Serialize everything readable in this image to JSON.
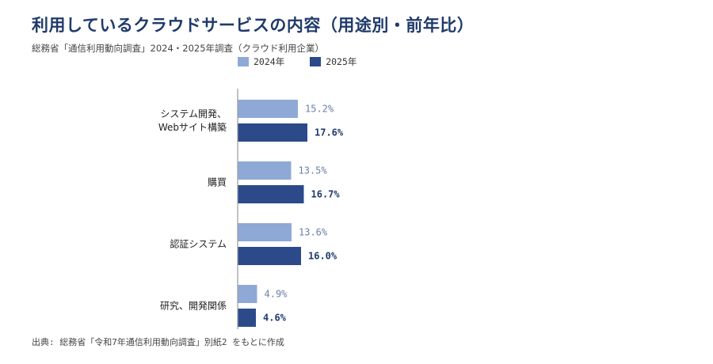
{
  "title": "利用しているクラウドサービスの内容（用途別・前年比）",
  "subtitle": "総務省「通信利用動向調査」2024・2025年調査（クラウド利用企業）",
  "source": "出典: 総務省「令和7年通信利用動向調査」別紙2 をもとに作成",
  "colors": {
    "series_2024": "#8fa9d6",
    "series_2025": "#2c4a8a",
    "axis": "#999999"
  },
  "chart_data": {
    "type": "bar",
    "orientation": "horizontal",
    "categories": [
      [
        "システム開発、",
        "Webサイト構築"
      ],
      [
        "購買"
      ],
      [
        "認証システム"
      ],
      [
        "研究、開発関係"
      ]
    ],
    "series": [
      {
        "name": "2024年",
        "values": [
          15.2,
          13.5,
          13.6,
          4.9
        ],
        "labels": [
          "15.2%",
          "13.5%",
          "13.6%",
          "4.9%"
        ]
      },
      {
        "name": "2025年",
        "values": [
          17.6,
          16.7,
          16.0,
          4.6
        ],
        "labels": [
          "17.6%",
          "16.7%",
          "16.0%",
          "4.6%"
        ]
      }
    ],
    "legend": "top",
    "grid": false
  }
}
